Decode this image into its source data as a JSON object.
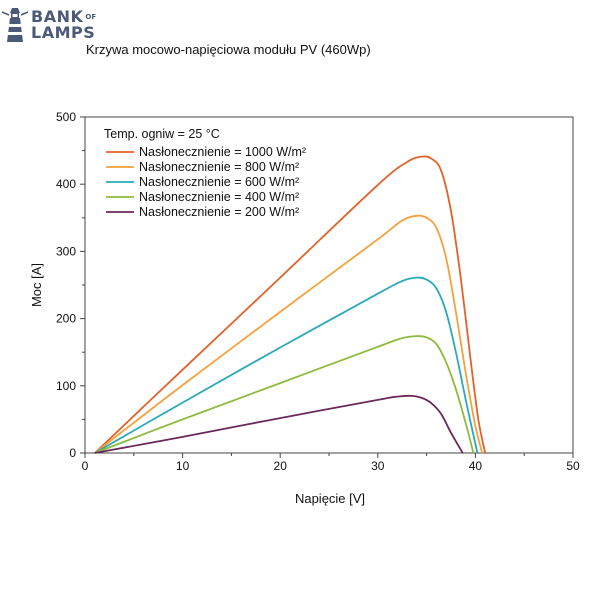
{
  "logo": {
    "line1": "BANK",
    "line1_small": "OF",
    "line2": "LAMPS",
    "color": "#4a5a78"
  },
  "chart_data": {
    "type": "line",
    "title": "Krzywa mocowo-napięciowa modułu PV (460Wp)",
    "xlabel": "Napięcie  [V]",
    "ylabel": "Moc  [A]",
    "xlim": [
      0,
      50
    ],
    "ylim": [
      0,
      500
    ],
    "xticks": [
      0,
      10,
      20,
      30,
      40,
      50
    ],
    "yticks": [
      0,
      100,
      200,
      300,
      400,
      500
    ],
    "grid": false,
    "legend_position": "top-left",
    "legend_title": "Temp. ogniw = 25 °C",
    "series": [
      {
        "name": "Nasłonecznienie = 1000 W/m²",
        "color": "#e2622a",
        "x": [
          1,
          10,
          20,
          30,
          33,
          34.5,
          35.5,
          36.5,
          37.5,
          38.5,
          39.5,
          40.3,
          41
        ],
        "y": [
          0,
          124,
          261,
          399,
          433,
          441,
          438,
          420,
          360,
          260,
          140,
          50,
          0
        ]
      },
      {
        "name": "Nasłonecznienie = 800 W/m²",
        "color": "#f4a23c",
        "x": [
          1,
          10,
          20,
          30,
          32.5,
          34,
          35,
          36,
          37,
          38,
          39,
          40,
          40.7
        ],
        "y": [
          0,
          101,
          210,
          318,
          346,
          353,
          350,
          335,
          290,
          210,
          120,
          40,
          0
        ]
      },
      {
        "name": "Nasłonecznienie = 600 W/m²",
        "color": "#2aa9b8",
        "x": [
          1,
          10,
          20,
          30,
          32.5,
          34,
          35,
          36,
          37,
          38,
          39,
          40.2
        ],
        "y": [
          0,
          75,
          157,
          237,
          256,
          261,
          258,
          245,
          210,
          150,
          80,
          0
        ]
      },
      {
        "name": "Nasłonecznienie = 400 W/m²",
        "color": "#8dbb3b",
        "x": [
          1,
          10,
          20,
          30,
          32.5,
          34,
          35,
          36,
          37,
          38,
          39,
          39.8
        ],
        "y": [
          0,
          50,
          104,
          158,
          171,
          174,
          172,
          162,
          135,
          95,
          45,
          0
        ]
      },
      {
        "name": "Nasłonecznienie = 200 W/m²",
        "color": "#6b2a5a",
        "x": [
          1,
          10,
          20,
          30,
          32,
          33.5,
          34.5,
          35.5,
          36.5,
          37.5,
          38.7
        ],
        "y": [
          0,
          24,
          52,
          79,
          84,
          85,
          82,
          74,
          58,
          30,
          0
        ]
      }
    ]
  }
}
